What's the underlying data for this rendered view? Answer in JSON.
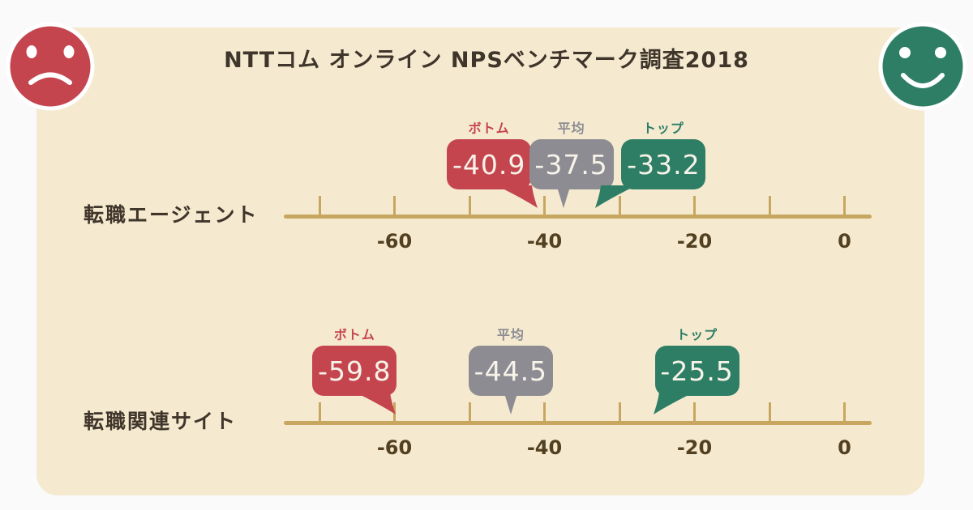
{
  "title": "NTTコム オンライン NPSベンチマーク調査2018",
  "colors": {
    "page_bg": "#fafafa",
    "card_bg": "#f5ead0",
    "axis": "#c7a75f",
    "text": "#3f352a",
    "tick_label": "#524020",
    "balloon_text": "#f7f3e8",
    "bottom": "#c5454f",
    "average": "#8d8c93",
    "top": "#2e7e66"
  },
  "icons": {
    "sad_face": "sad-face-icon",
    "happy_face": "happy-face-icon"
  },
  "chart_data": [
    {
      "type": "scatter",
      "category": "転職エージェント",
      "axis": {
        "range": [
          -74.8,
          3.6
        ],
        "ticks": [
          -70,
          -60,
          -50,
          -40,
          -30,
          -20,
          -10,
          0
        ],
        "labeled_ticks": [
          -60,
          -40,
          -20,
          0
        ]
      },
      "markers": [
        {
          "label": "ボトム",
          "value": -40.9,
          "role": "bottom"
        },
        {
          "label": "平均",
          "value": -37.5,
          "role": "average"
        },
        {
          "label": "トップ",
          "value": -33.2,
          "role": "top"
        }
      ]
    },
    {
      "type": "scatter",
      "category": "転職関連サイト",
      "axis": {
        "range": [
          -74.8,
          3.6
        ],
        "ticks": [
          -70,
          -60,
          -50,
          -40,
          -30,
          -20,
          -10,
          0
        ],
        "labeled_ticks": [
          -60,
          -40,
          -20,
          0
        ]
      },
      "markers": [
        {
          "label": "ボトム",
          "value": -59.8,
          "role": "bottom"
        },
        {
          "label": "平均",
          "value": -44.5,
          "role": "average"
        },
        {
          "label": "トップ",
          "value": -25.5,
          "role": "top"
        }
      ]
    }
  ]
}
